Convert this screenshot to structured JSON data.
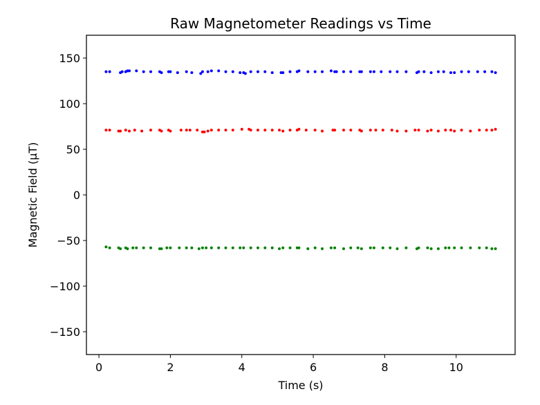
{
  "chart_data": {
    "type": "scatter",
    "title": "Raw Magnetometer Readings vs Time",
    "xlabel": "Time (s)",
    "ylabel": "Magnetic Field (µT)",
    "xlim": [
      -0.35,
      11.65
    ],
    "ylim": [
      -175,
      175
    ],
    "xticks": [
      0,
      2,
      4,
      6,
      8,
      10
    ],
    "yticks": [
      -150,
      -100,
      -50,
      0,
      50,
      100,
      150
    ],
    "ytick_labels": [
      "−150",
      "−100",
      "−50",
      "0",
      "50",
      "100",
      "150"
    ],
    "grid": false,
    "legend": "none",
    "series": [
      {
        "color": "#0000ff",
        "x": [
          0.2,
          0.3,
          0.6,
          0.65,
          0.75,
          0.8,
          0.85,
          1.05,
          1.25,
          1.45,
          1.7,
          1.75,
          1.95,
          2.0,
          2.2,
          2.45,
          2.6,
          2.85,
          2.9,
          3.05,
          3.15,
          3.35,
          3.55,
          3.75,
          3.95,
          4.05,
          4.1,
          4.25,
          4.45,
          4.65,
          4.85,
          5.1,
          5.15,
          5.35,
          5.55,
          5.6,
          5.85,
          6.05,
          6.25,
          6.5,
          6.6,
          6.65,
          6.85,
          7.05,
          7.3,
          7.35,
          7.6,
          7.7,
          7.9,
          8.15,
          8.35,
          8.6,
          8.9,
          8.95,
          9.1,
          9.3,
          9.5,
          9.65,
          9.85,
          9.95,
          10.15,
          10.35,
          10.6,
          10.8,
          11.0,
          11.1
        ],
        "y": [
          135,
          135,
          134,
          135,
          135,
          136,
          136,
          136,
          135,
          135,
          135,
          134,
          135,
          135,
          134,
          135,
          134,
          133,
          135,
          135,
          136,
          136,
          135,
          135,
          134,
          134,
          133,
          135,
          135,
          135,
          134,
          134,
          134,
          135,
          135,
          136,
          135,
          135,
          135,
          136,
          135,
          135,
          135,
          135,
          135,
          135,
          135,
          135,
          135,
          135,
          135,
          135,
          134,
          135,
          135,
          134,
          135,
          135,
          134,
          134,
          135,
          135,
          135,
          135,
          135,
          134
        ]
      },
      {
        "color": "#ff0000",
        "x": [
          0.2,
          0.3,
          0.55,
          0.6,
          0.75,
          0.85,
          1.0,
          1.2,
          1.45,
          1.7,
          1.75,
          1.95,
          2.0,
          2.3,
          2.45,
          2.55,
          2.75,
          2.9,
          2.95,
          3.05,
          3.15,
          3.35,
          3.55,
          3.75,
          4.0,
          4.2,
          4.25,
          4.45,
          4.65,
          4.85,
          5.05,
          5.15,
          5.35,
          5.55,
          5.6,
          5.8,
          6.05,
          6.25,
          6.55,
          6.6,
          6.85,
          7.05,
          7.3,
          7.35,
          7.6,
          7.75,
          7.95,
          8.2,
          8.35,
          8.6,
          8.85,
          8.95,
          9.2,
          9.3,
          9.5,
          9.7,
          9.85,
          9.95,
          10.15,
          10.4,
          10.65,
          10.85,
          11.0,
          11.1
        ],
        "y": [
          71,
          71,
          70,
          70,
          71,
          70,
          71,
          70,
          71,
          71,
          70,
          71,
          70,
          71,
          71,
          71,
          71,
          69,
          69,
          70,
          71,
          71,
          71,
          71,
          72,
          72,
          71,
          71,
          71,
          71,
          71,
          70,
          71,
          71,
          72,
          71,
          71,
          70,
          71,
          71,
          71,
          71,
          71,
          70,
          71,
          71,
          71,
          71,
          70,
          70,
          71,
          71,
          70,
          71,
          70,
          71,
          71,
          70,
          71,
          70,
          71,
          71,
          71,
          72
        ]
      },
      {
        "color": "#008000",
        "x": [
          0.2,
          0.3,
          0.55,
          0.6,
          0.75,
          0.8,
          0.95,
          1.05,
          1.25,
          1.45,
          1.7,
          1.75,
          1.9,
          2.0,
          2.25,
          2.45,
          2.6,
          2.8,
          2.9,
          3.0,
          3.15,
          3.35,
          3.55,
          3.75,
          3.95,
          4.05,
          4.25,
          4.45,
          4.65,
          4.85,
          5.05,
          5.15,
          5.35,
          5.55,
          5.6,
          5.85,
          6.05,
          6.25,
          6.5,
          6.6,
          6.85,
          7.05,
          7.25,
          7.35,
          7.6,
          7.7,
          7.95,
          8.15,
          8.35,
          8.6,
          8.9,
          8.95,
          9.2,
          9.3,
          9.5,
          9.7,
          9.8,
          9.95,
          10.15,
          10.4,
          10.65,
          10.85,
          11.0,
          11.1
        ],
        "y": [
          -57,
          -58,
          -58,
          -59,
          -58,
          -59,
          -58,
          -58,
          -58,
          -58,
          -59,
          -59,
          -58,
          -58,
          -58,
          -58,
          -58,
          -59,
          -58,
          -58,
          -58,
          -58,
          -58,
          -58,
          -58,
          -58,
          -58,
          -58,
          -58,
          -58,
          -59,
          -58,
          -58,
          -58,
          -58,
          -59,
          -58,
          -59,
          -58,
          -58,
          -59,
          -58,
          -58,
          -59,
          -58,
          -58,
          -58,
          -58,
          -59,
          -58,
          -59,
          -58,
          -58,
          -59,
          -59,
          -58,
          -58,
          -58,
          -58,
          -58,
          -58,
          -58,
          -59,
          -59
        ]
      }
    ]
  }
}
